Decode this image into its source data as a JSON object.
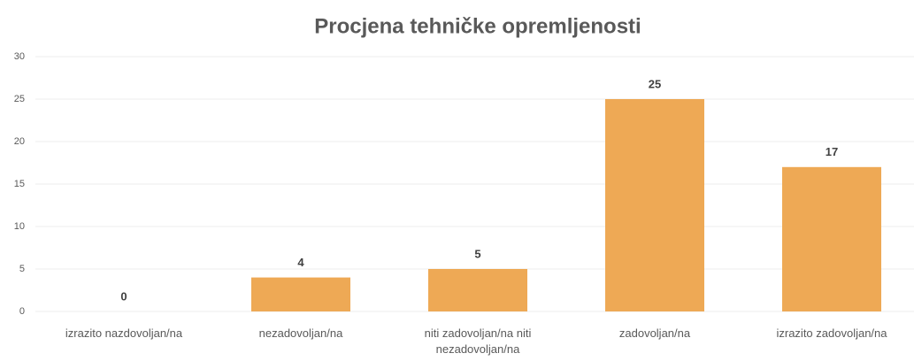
{
  "chart_data": {
    "type": "bar",
    "title": "Procjena tehničke opremljenosti",
    "categories": [
      "izrazito nazdovoljan/na",
      "nezadovoljan/na",
      "niti zadovoljan/na niti nezadovoljan/na",
      "zadovoljan/na",
      "izrazito zadovoljan/na"
    ],
    "values": [
      0,
      4,
      5,
      25,
      17
    ],
    "color": "#eea955",
    "ylim": [
      0,
      30
    ],
    "yticks": [
      0,
      5,
      10,
      15,
      20,
      25,
      30
    ],
    "grid": true
  }
}
